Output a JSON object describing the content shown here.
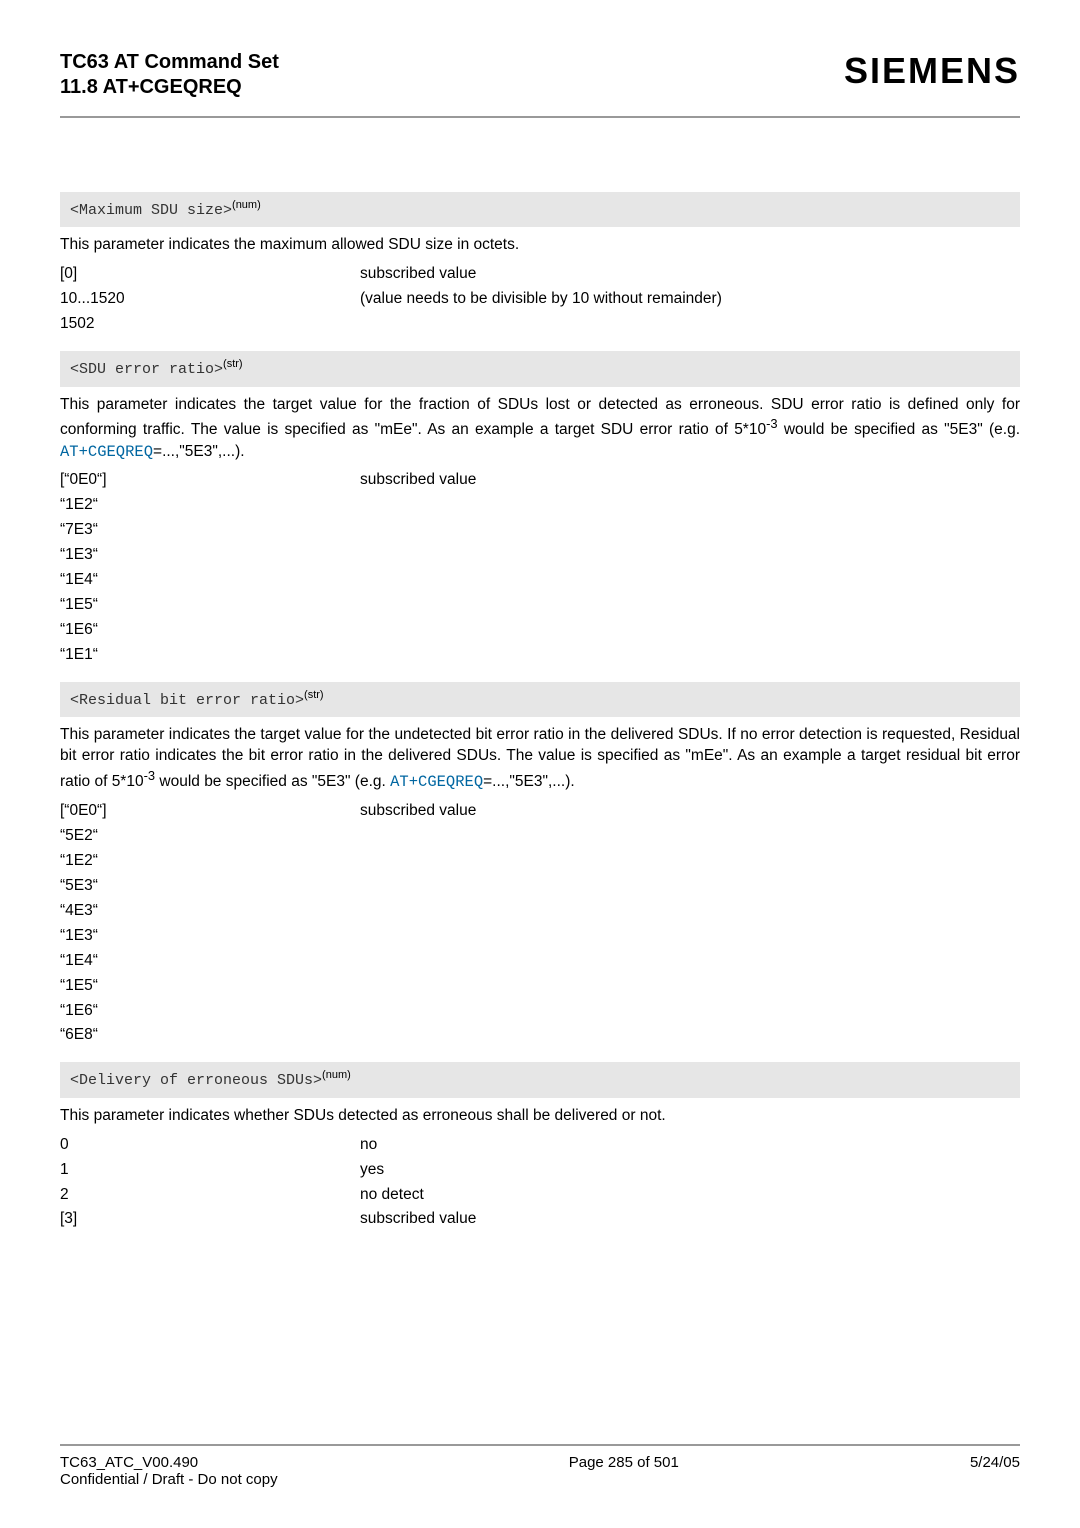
{
  "header": {
    "title_line1": "TC63 AT Command Set",
    "title_line2": "11.8 AT+CGEQREQ",
    "brand": "SIEMENS"
  },
  "colors": {
    "divider": "#999999",
    "band_bg": "#e6e6e6",
    "link": "#0066a1",
    "text": "#000000",
    "background": "#ffffff"
  },
  "sections": [
    {
      "id": "max_sdu",
      "param_code": "<Maximum SDU size>",
      "param_sup": "(num)",
      "desc_plain": "This parameter indicates the maximum allowed SDU size in octets.",
      "rows": [
        {
          "k": "[0]",
          "v": "subscribed value"
        },
        {
          "k": "10...1520",
          "v": "(value needs to be divisible by 10 without remainder)"
        },
        {
          "k": "1502",
          "v": ""
        }
      ]
    },
    {
      "id": "sdu_err",
      "param_code": "<SDU error ratio>",
      "param_sup": "(str)",
      "desc_pre": "This parameter indicates the target value for the fraction of SDUs lost or detected as erroneous. SDU error ratio is defined only for conforming traffic. The value is specified as \"mEe\". As an example a target SDU error ratio of 5*10",
      "desc_exp": "-3",
      "desc_mid": " would be specified as \"5E3\" (e.g. ",
      "desc_link": "AT+CGEQREQ",
      "desc_post": "=...,\"5E3\",...).",
      "rows": [
        {
          "k": "[“0E0“]",
          "v": "subscribed value"
        },
        {
          "k": "“1E2“",
          "v": ""
        },
        {
          "k": "“7E3“",
          "v": ""
        },
        {
          "k": "“1E3“",
          "v": ""
        },
        {
          "k": "“1E4“",
          "v": ""
        },
        {
          "k": "“1E5“",
          "v": ""
        },
        {
          "k": "“1E6“",
          "v": ""
        },
        {
          "k": "“1E1“",
          "v": ""
        }
      ]
    },
    {
      "id": "res_bit",
      "param_code": "<Residual bit error ratio>",
      "param_sup": "(str)",
      "desc_pre": "This parameter indicates the target value for the undetected bit error ratio in the delivered SDUs. If no error detection is requested, Residual bit error ratio indicates the bit error ratio in the delivered SDUs. The value is specified as \"mEe\". As an example a target residual bit error ratio of 5*10",
      "desc_exp": "-3",
      "desc_mid": " would be specified as \"5E3\" (e.g. ",
      "desc_link": "AT+CGEQREQ",
      "desc_post": "=...,\"5E3\",...).",
      "rows": [
        {
          "k": "[“0E0“]",
          "v": "subscribed value"
        },
        {
          "k": "“5E2“",
          "v": ""
        },
        {
          "k": "“1E2“",
          "v": ""
        },
        {
          "k": "“5E3“",
          "v": ""
        },
        {
          "k": "“4E3“",
          "v": ""
        },
        {
          "k": "“1E3“",
          "v": ""
        },
        {
          "k": "“1E4“",
          "v": ""
        },
        {
          "k": "“1E5“",
          "v": ""
        },
        {
          "k": "“1E6“",
          "v": ""
        },
        {
          "k": "“6E8“",
          "v": ""
        }
      ]
    },
    {
      "id": "deliv_err",
      "param_code": "<Delivery of erroneous SDUs>",
      "param_sup": "(num)",
      "desc_plain": "This parameter indicates whether SDUs detected as erroneous shall be delivered or not.",
      "rows": [
        {
          "k": "0",
          "v": "no"
        },
        {
          "k": "1",
          "v": "yes"
        },
        {
          "k": "2",
          "v": "no detect"
        },
        {
          "k": "[3]",
          "v": "subscribed value"
        }
      ]
    }
  ],
  "footer": {
    "left_line1": "TC63_ATC_V00.490",
    "left_line2": "Confidential / Draft - Do not copy",
    "center": "Page 285 of 501",
    "right": "5/24/05"
  }
}
